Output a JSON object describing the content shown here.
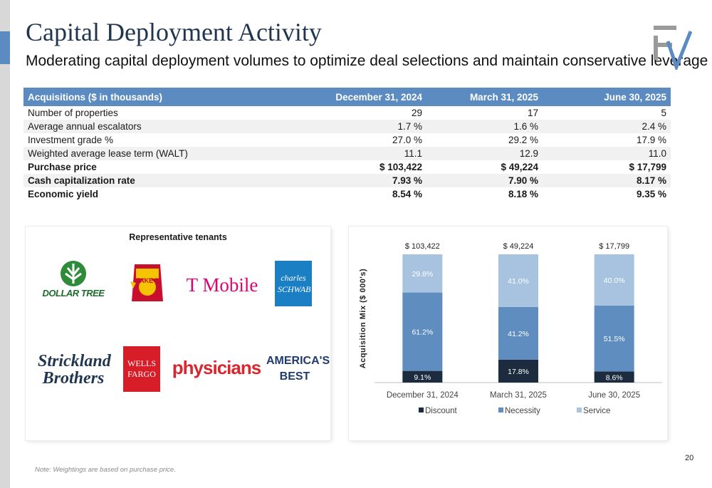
{
  "header": {
    "title": "Capital Deployment Activity",
    "subtitle": "Moderating capital deployment volumes to optimize deal selections and maintain conservative leverage"
  },
  "table": {
    "headers": [
      "Acquisitions ($ in thousands)",
      "December 31, 2024",
      "March 31, 2025",
      "June 30, 2025"
    ],
    "rows": [
      {
        "label": "Number of properties",
        "values": [
          "29",
          "17",
          "5"
        ],
        "bold": false
      },
      {
        "label": "Average annual escalators",
        "values": [
          "1.7 %",
          "1.6 %",
          "2.4 %"
        ],
        "bold": false
      },
      {
        "label": "Investment grade %",
        "values": [
          "27.0 %",
          "29.2 %",
          "17.9 %"
        ],
        "bold": false
      },
      {
        "label": "Weighted average lease term (WALT)",
        "values": [
          "11.1",
          "12.9",
          "11.0"
        ],
        "bold": false
      },
      {
        "label": "Purchase price",
        "values": [
          "$ 103,422",
          "$ 49,224",
          "$ 17,799"
        ],
        "bold": true
      },
      {
        "label": "Cash capitalization rate",
        "values": [
          "7.93 %",
          "7.90 %",
          "8.17 %"
        ],
        "bold": true
      },
      {
        "label": "Economic yield",
        "values": [
          "8.54 %",
          "8.18 %",
          "9.35 %"
        ],
        "bold": true
      }
    ]
  },
  "tenants": {
    "title": "Representative tenants",
    "logos": [
      {
        "icon": "dollar-tree-logo",
        "text": "DOLLAR TREE"
      },
      {
        "icon": "take-5-logo",
        "text": "TAKE 5"
      },
      {
        "icon": "t-mobile-logo",
        "text": "T Mobile"
      },
      {
        "icon": "charles-schwab-logo",
        "text": "charles SCHWAB"
      },
      {
        "icon": "strickland-brothers-logo",
        "text": "Strickland Brothers"
      },
      {
        "icon": "wells-fargo-logo",
        "text": "WELLS FARGO"
      },
      {
        "icon": "physicians-logo",
        "text": "physicians"
      },
      {
        "icon": "americas-best-logo",
        "text": "AMERICA'S BEST"
      }
    ]
  },
  "colors": {
    "header_blue": "#5b8bc0",
    "discount": "#1c2c3e",
    "necessity": "#5f8dc0",
    "service": "#a7c3e0",
    "title_navy": "#1f3550"
  },
  "chart_data": {
    "type": "bar",
    "stacked": true,
    "normalized": true,
    "ylabel": "Acquisition Mix ($ 000's)",
    "categories": [
      "December 31, 2024",
      "March 31, 2025",
      "June 30, 2025"
    ],
    "totals": [
      "$ 103,422",
      "$ 49,224",
      "$ 17,799"
    ],
    "series": [
      {
        "name": "Discount",
        "values": [
          9.1,
          17.8,
          8.6
        ],
        "labels": [
          "9.1%",
          "17.8%",
          "8.6%"
        ],
        "color": "#1c2c3e"
      },
      {
        "name": "Necessity",
        "values": [
          61.2,
          41.2,
          51.5
        ],
        "labels": [
          "61.2%",
          "41.2%",
          "51.5%"
        ],
        "color": "#5f8dc0"
      },
      {
        "name": "Service",
        "values": [
          29.8,
          41.0,
          40.0
        ],
        "labels": [
          "29.8%",
          "41.0%",
          "40.0%"
        ],
        "color": "#a7c3e0"
      }
    ],
    "legend": "bottom",
    "grid": false
  },
  "footer": {
    "note": "Note: Weightings are based on purchase price.",
    "page_number": "20"
  }
}
